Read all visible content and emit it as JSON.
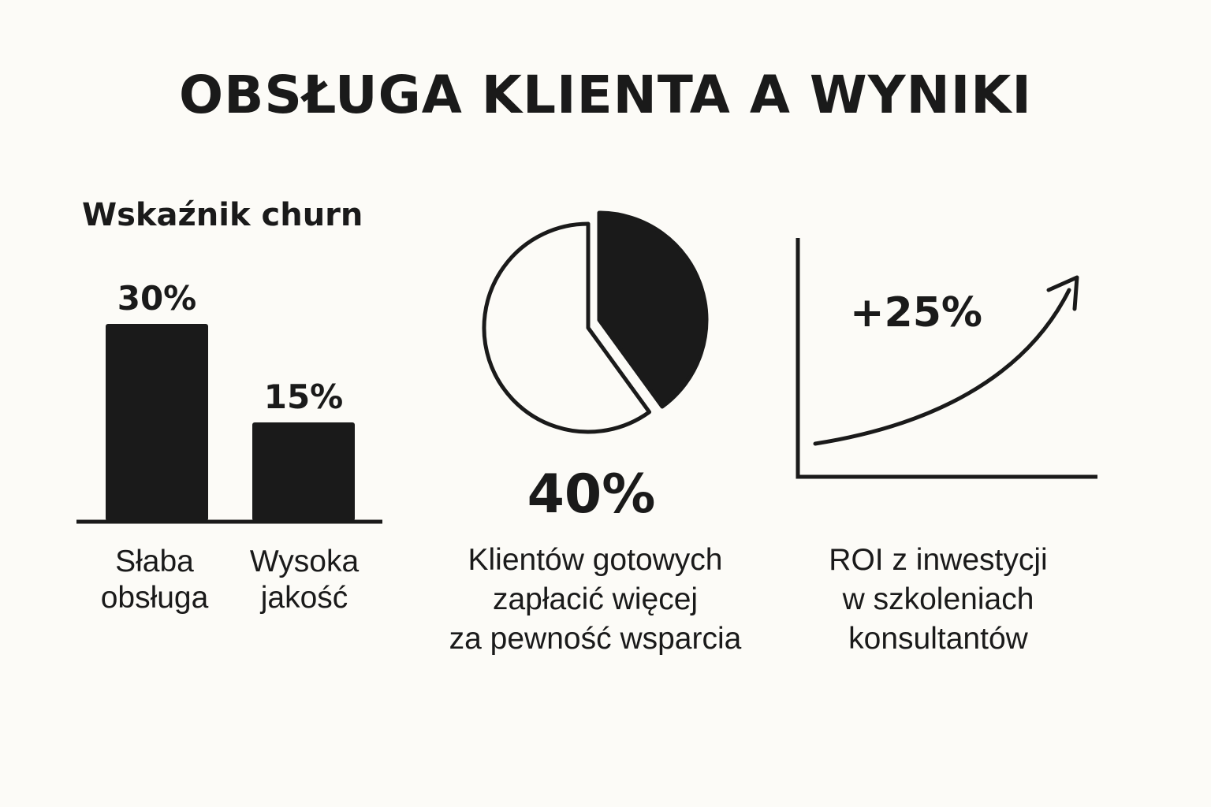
{
  "title": "OBSŁUGA KLIENTA A WYNIKI",
  "chart_data": [
    {
      "type": "bar",
      "title": "Wskaźnik churn",
      "categories": [
        [
          "Słaba",
          "obsługa"
        ],
        [
          "Wysoka",
          "jakość"
        ]
      ],
      "values": [
        30,
        15
      ],
      "value_labels": [
        "30%",
        "15%"
      ],
      "ylim": [
        0,
        30
      ],
      "grid": false
    },
    {
      "type": "pie",
      "title": "",
      "highlight_value": "40%",
      "slices": [
        {
          "value": 40,
          "filled": true
        },
        {
          "value": 60,
          "filled": false
        }
      ],
      "caption": [
        "Klientów gotowych",
        "zapłacić więcej",
        "za pewność wsparcia"
      ]
    },
    {
      "type": "line",
      "title": "",
      "annotation": "+25%",
      "trend": "rising",
      "caption": [
        "ROI z inwestycji",
        "w szkoleniach",
        "konsultantów"
      ]
    }
  ],
  "colors": {
    "background": "#fcfbf7",
    "ink": "#1a1a1a"
  }
}
